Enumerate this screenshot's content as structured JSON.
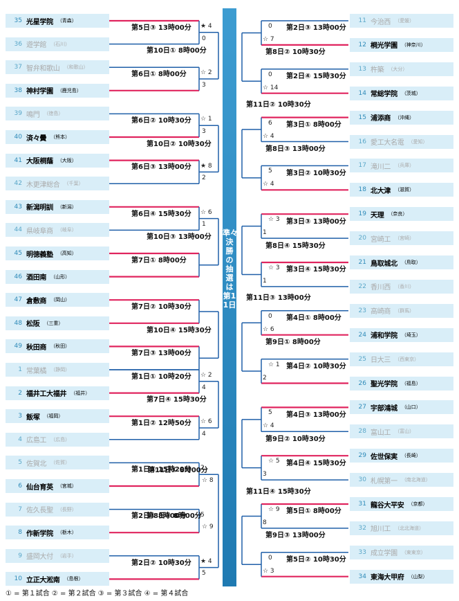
{
  "center_label": "準々決勝の抽選は第11日",
  "legend": "① = 第１試合 ② = 第２試合 ③ = 第３試合 ④ = 第４試合",
  "left_teams": [
    {
      "num": "35",
      "name": "光星学院",
      "pref": "（青森）",
      "win": true
    },
    {
      "num": "36",
      "name": "遊学館",
      "pref": "（石川）",
      "win": false
    },
    {
      "num": "37",
      "name": "智弁和歌山",
      "pref": "（和歌山）",
      "win": false
    },
    {
      "num": "38",
      "name": "神村学園",
      "pref": "（鹿児島）",
      "win": true
    },
    {
      "num": "39",
      "name": "鳴門",
      "pref": "（徳島）",
      "win": false
    },
    {
      "num": "40",
      "name": "済々黌",
      "pref": "（熊本）",
      "win": true
    },
    {
      "num": "41",
      "name": "大阪桐蔭",
      "pref": "（大阪）",
      "win": true
    },
    {
      "num": "42",
      "name": "木更津総合",
      "pref": "（千葉）",
      "win": false
    },
    {
      "num": "43",
      "name": "新潟明訓",
      "pref": "（新潟）",
      "win": true
    },
    {
      "num": "44",
      "name": "県岐阜商",
      "pref": "（岐阜）",
      "win": false
    },
    {
      "num": "45",
      "name": "明徳義塾",
      "pref": "（高知）",
      "win": true
    },
    {
      "num": "46",
      "name": "酒田南",
      "pref": "（山形）",
      "win": true
    },
    {
      "num": "47",
      "name": "倉敷商",
      "pref": "（岡山）",
      "win": true
    },
    {
      "num": "48",
      "name": "松阪",
      "pref": "（三重）",
      "win": true
    },
    {
      "num": "49",
      "name": "秋田商",
      "pref": "（秋田）",
      "win": true
    },
    {
      "num": "1",
      "name": "常葉橘",
      "pref": "（静岡）",
      "win": false
    },
    {
      "num": "2",
      "name": "福井工大福井",
      "pref": "（福井）",
      "win": true
    },
    {
      "num": "3",
      "name": "飯塚",
      "pref": "（福岡）",
      "win": true
    },
    {
      "num": "4",
      "name": "広島工",
      "pref": "（広島）",
      "win": false
    },
    {
      "num": "5",
      "name": "佐賀北",
      "pref": "（佐賀）",
      "win": false
    },
    {
      "num": "6",
      "name": "仙台育英",
      "pref": "（宮城）",
      "win": true
    },
    {
      "num": "7",
      "name": "佐久長聖",
      "pref": "（長野）",
      "win": false
    },
    {
      "num": "8",
      "name": "作新学院",
      "pref": "（栃木）",
      "win": true
    },
    {
      "num": "9",
      "name": "盛岡大付",
      "pref": "（岩手）",
      "win": false
    },
    {
      "num": "10",
      "name": "立正大淞南",
      "pref": "（島根）",
      "win": true
    }
  ],
  "right_teams": [
    {
      "num": "11",
      "name": "今治西",
      "pref": "（愛媛）",
      "win": false
    },
    {
      "num": "12",
      "name": "桐光学園",
      "pref": "（神奈川）",
      "win": true
    },
    {
      "num": "13",
      "name": "杵築",
      "pref": "（大分）",
      "win": false
    },
    {
      "num": "14",
      "name": "常総学院",
      "pref": "（茨城）",
      "win": true
    },
    {
      "num": "15",
      "name": "浦添商",
      "pref": "（沖縄）",
      "win": true
    },
    {
      "num": "16",
      "name": "愛工大名電",
      "pref": "（愛知）",
      "win": false
    },
    {
      "num": "17",
      "name": "滝川二",
      "pref": "（兵庫）",
      "win": false
    },
    {
      "num": "18",
      "name": "北大津",
      "pref": "（滋賀）",
      "win": true
    },
    {
      "num": "19",
      "name": "天理",
      "pref": "（奈良）",
      "win": true
    },
    {
      "num": "20",
      "name": "宮崎工",
      "pref": "（宮崎）",
      "win": false
    },
    {
      "num": "21",
      "name": "鳥取城北",
      "pref": "（鳥取）",
      "win": true
    },
    {
      "num": "22",
      "name": "香川西",
      "pref": "（香川）",
      "win": false
    },
    {
      "num": "23",
      "name": "高崎商",
      "pref": "（群馬）",
      "win": false
    },
    {
      "num": "24",
      "name": "浦和学院",
      "pref": "（埼玉）",
      "win": true
    },
    {
      "num": "25",
      "name": "日大三",
      "pref": "（西東京）",
      "win": false
    },
    {
      "num": "26",
      "name": "聖光学院",
      "pref": "（福島）",
      "win": true
    },
    {
      "num": "27",
      "name": "宇部鴻城",
      "pref": "（山口）",
      "win": true
    },
    {
      "num": "28",
      "name": "富山工",
      "pref": "（富山）",
      "win": false
    },
    {
      "num": "29",
      "name": "佐世保実",
      "pref": "（長崎）",
      "win": true
    },
    {
      "num": "30",
      "name": "札幌第一",
      "pref": "（南北海道）",
      "win": false
    },
    {
      "num": "31",
      "name": "龍谷大平安",
      "pref": "（京都）",
      "win": true
    },
    {
      "num": "32",
      "name": "旭川工",
      "pref": "（北北海道）",
      "win": false
    },
    {
      "num": "33",
      "name": "成立学園",
      "pref": "（東東京）",
      "win": false
    },
    {
      "num": "34",
      "name": "東海大甲府",
      "pref": "（山梨）",
      "win": true
    }
  ],
  "left_games": [
    {
      "t": "第5日③ 13時00分",
      "s1": "★ 4",
      "s2": "0"
    },
    {
      "t": "第6日① 8時00分",
      "s1": "☆ 2",
      "s2": "3"
    },
    {
      "t": "第6日② 10時30分",
      "s1": "☆ 1",
      "s2": "3"
    },
    {
      "t": "第6日③ 13時00分",
      "s1": "★ 8",
      "s2": "2"
    },
    {
      "t": "第6日④ 15時30分",
      "s1": "☆ 6",
      "s2": "1"
    },
    {
      "t": "第7日① 8時00分",
      "s1": "",
      "s2": ""
    },
    {
      "t": "第7日② 10時30分",
      "s1": "",
      "s2": ""
    },
    {
      "t": "第7日③ 13時00分",
      "s1": "",
      "s2": ""
    },
    {
      "t": "第1日① 10時20分",
      "s1": "☆ 2",
      "s2": "4"
    },
    {
      "t": "第1日② 12時50分",
      "s1": "☆ 6",
      "s2": "4"
    },
    {
      "t": "第1日③ 15時20分",
      "s1": "2",
      "s2": "☆ 8"
    },
    {
      "t": "第2日① 8時00分",
      "s1": "5",
      "s2": "☆ 9"
    },
    {
      "t": "第2日② 10時30分",
      "s1": "★ 4",
      "s2": "5"
    }
  ],
  "left_r2": [
    "第10日① 8時00分",
    "第10日② 10時30分",
    "第10日③ 13時00分",
    "第10日④ 15時30分",
    "第7日④ 15時30分",
    "第8日① 8時00分"
  ],
  "left_r3": "第11日① 8時00分",
  "right_games": [
    {
      "t": "第2日③ 13時00分",
      "s1": "0",
      "s2": "☆ 7"
    },
    {
      "t": "第2日④ 15時30分",
      "s1": "0",
      "s2": "☆ 14"
    },
    {
      "t": "第3日① 8時00分",
      "s1": "6",
      "s2": "☆ 4"
    },
    {
      "t": "第3日② 10時30分",
      "s1": "5",
      "s2": "☆ 4"
    },
    {
      "t": "第3日③ 13時00分",
      "s1": "☆ 3",
      "s2": "1"
    },
    {
      "t": "第3日④ 15時30分",
      "s1": "☆ 3",
      "s2": "1"
    },
    {
      "t": "第4日① 8時00分",
      "s1": "0",
      "s2": "☆ 6"
    },
    {
      "t": "第4日② 10時30分",
      "s1": "☆ 1",
      "s2": "2"
    },
    {
      "t": "第4日③ 13時00分",
      "s1": "5",
      "s2": "☆ 4"
    },
    {
      "t": "第4日④ 15時30分",
      "s1": "☆ 5",
      "s2": "3"
    },
    {
      "t": "第5日① 8時00分",
      "s1": "☆ 9",
      "s2": "8"
    },
    {
      "t": "第5日② 10時30分",
      "s1": "0",
      "s2": "☆ 3"
    }
  ],
  "right_r2": [
    "第8日② 10時30分",
    "第8日③ 13時00分",
    "第8日④ 15時30分",
    "第9日① 8時00分",
    "第9日② 10時30分",
    "第9日③ 13時00分"
  ],
  "right_r3": [
    "第11日② 10時30分",
    "第11日③ 13時00分",
    "第11日④ 15時30分"
  ]
}
